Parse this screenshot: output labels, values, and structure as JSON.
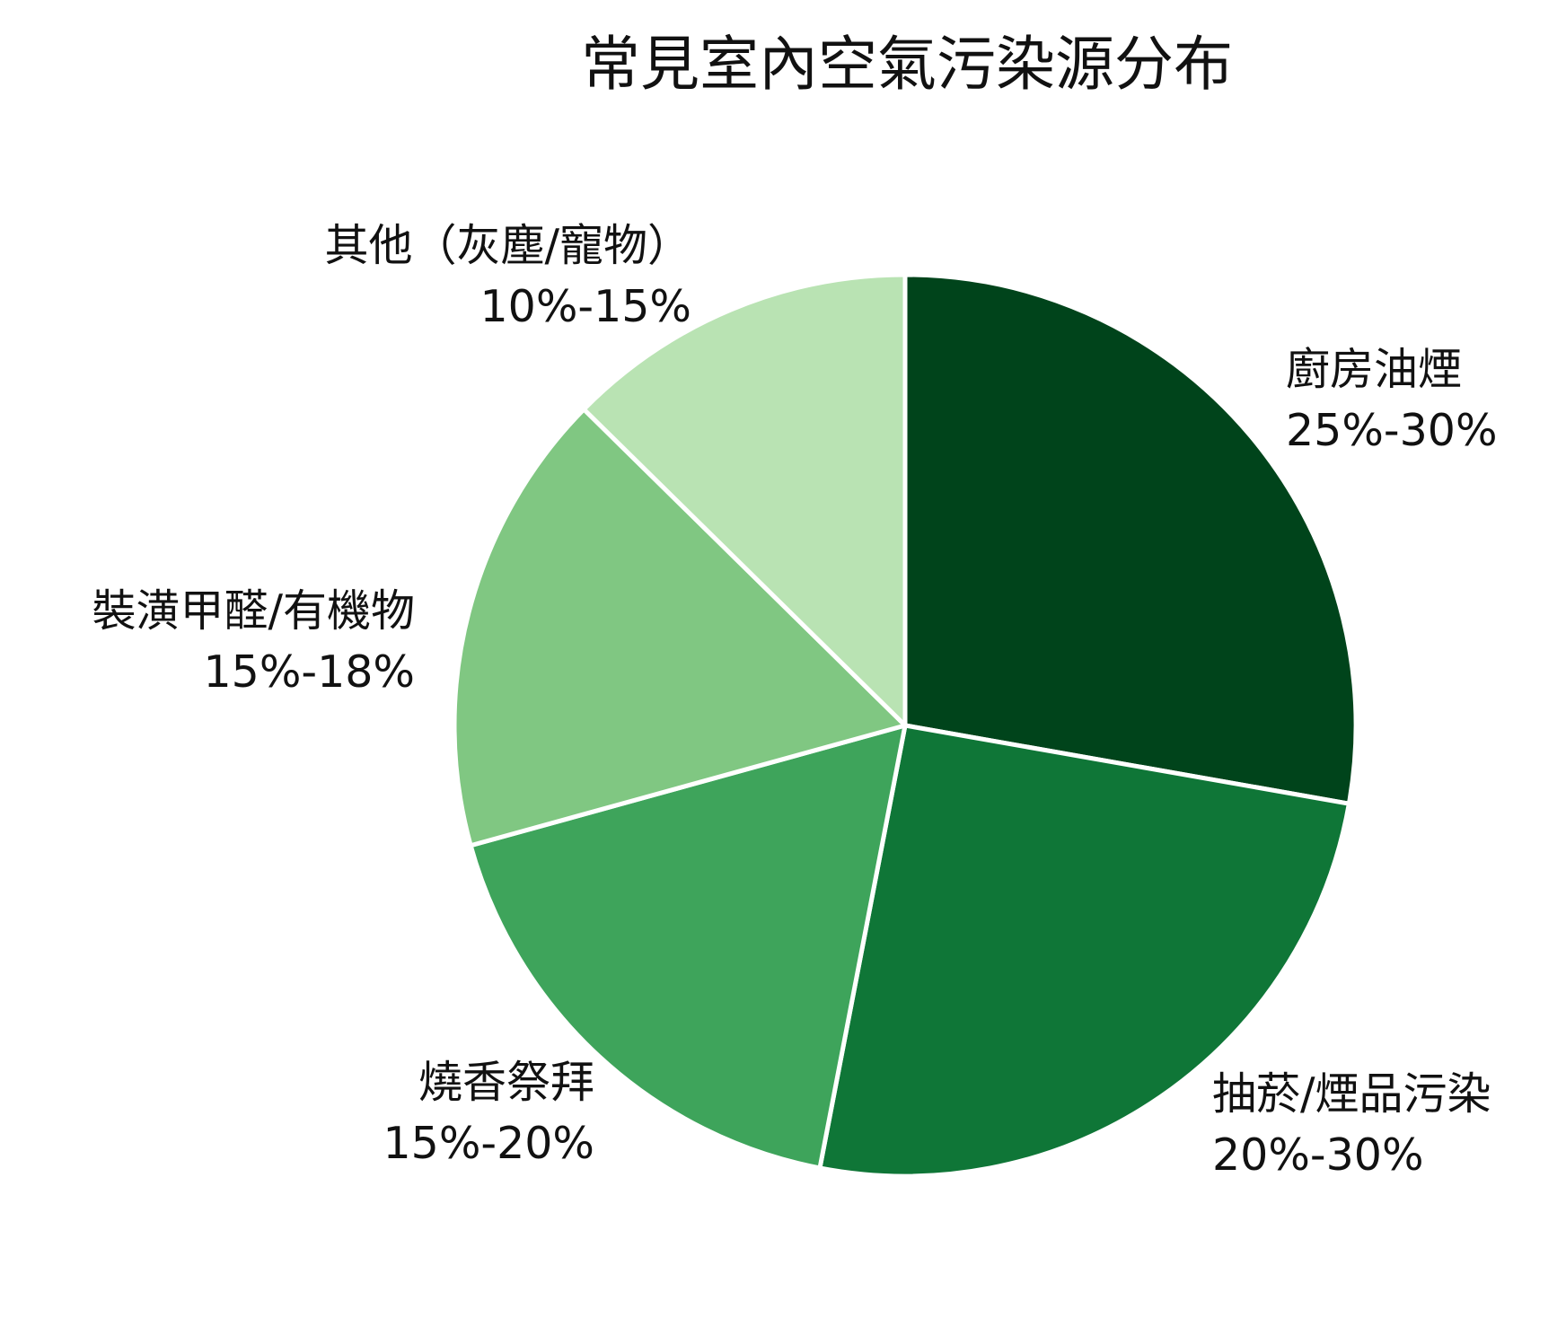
{
  "chart_data": {
    "type": "pie",
    "title": "常見室內空氣污染源分布",
    "slices": [
      {
        "name": "廚房油煙",
        "range_label": "25%-30%",
        "value": 27.5,
        "color": "#00441b"
      },
      {
        "name": "抽菸/煙品污染",
        "range_label": "20%-30%",
        "value": 25,
        "color": "#0f7637"
      },
      {
        "name": "燒香祭拜",
        "range_label": "15%-20%",
        "value": 17.5,
        "color": "#3ea45b"
      },
      {
        "name": "裝潢甲醛/有機物",
        "range_label": "15%-18%",
        "value": 16.5,
        "color": "#80c782"
      },
      {
        "name": "其他（灰塵/寵物）",
        "range_label": "10%-15%",
        "value": 12.5,
        "color": "#b9e3b3"
      }
    ],
    "slice_border_color": "#ffffff",
    "start_position": "12 o'clock",
    "direction": "clockwise",
    "legend": "none"
  }
}
